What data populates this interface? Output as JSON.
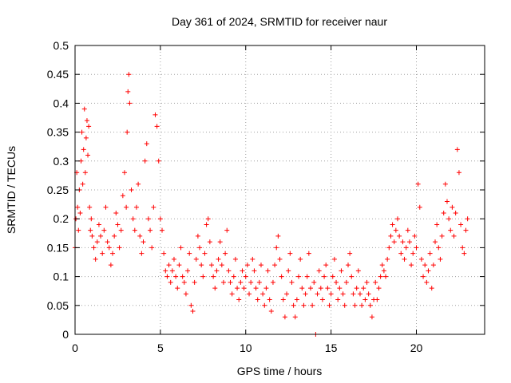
{
  "chart_data": {
    "type": "scatter",
    "title": "Day 361 of 2024, SRMTID for receiver naur",
    "xlabel": "GPS time / hours",
    "ylabel": "SRMTID / TECUs",
    "xlim": [
      0,
      24
    ],
    "ylim": [
      0,
      0.5
    ],
    "xticks": [
      0,
      5,
      10,
      15,
      20
    ],
    "yticks": [
      0,
      0.05,
      0.1,
      0.15,
      0.2,
      0.25,
      0.3,
      0.35,
      0.4,
      0.45,
      0.5
    ],
    "xtick_labels": [
      "0",
      "5",
      "10",
      "15",
      "20"
    ],
    "ytick_labels": [
      "0",
      "0.05",
      "0.1",
      "0.15",
      "0.2",
      "0.25",
      "0.3",
      "0.35",
      "0.4",
      "0.45",
      "0.5"
    ],
    "grid": true,
    "marker": "+",
    "color": "#ff0000",
    "series": [
      {
        "name": "SRMTID",
        "points": [
          [
            0.0,
            0.15
          ],
          [
            0.05,
            0.2
          ],
          [
            0.1,
            0.28
          ],
          [
            0.15,
            0.22
          ],
          [
            0.2,
            0.18
          ],
          [
            0.25,
            0.25
          ],
          [
            0.3,
            0.21
          ],
          [
            0.35,
            0.3
          ],
          [
            0.4,
            0.35
          ],
          [
            0.45,
            0.26
          ],
          [
            0.5,
            0.32
          ],
          [
            0.55,
            0.39
          ],
          [
            0.6,
            0.28
          ],
          [
            0.65,
            0.34
          ],
          [
            0.7,
            0.37
          ],
          [
            0.75,
            0.31
          ],
          [
            0.8,
            0.36
          ],
          [
            0.85,
            0.22
          ],
          [
            0.9,
            0.18
          ],
          [
            0.95,
            0.2
          ],
          [
            1.0,
            0.17
          ],
          [
            1.1,
            0.15
          ],
          [
            1.2,
            0.13
          ],
          [
            1.3,
            0.16
          ],
          [
            1.4,
            0.19
          ],
          [
            1.5,
            0.17
          ],
          [
            1.6,
            0.14
          ],
          [
            1.7,
            0.18
          ],
          [
            1.8,
            0.22
          ],
          [
            1.9,
            0.16
          ],
          [
            2.0,
            0.15
          ],
          [
            2.1,
            0.12
          ],
          [
            2.2,
            0.14
          ],
          [
            2.3,
            0.17
          ],
          [
            2.4,
            0.21
          ],
          [
            2.5,
            0.19
          ],
          [
            2.6,
            0.15
          ],
          [
            2.7,
            0.18
          ],
          [
            2.8,
            0.24
          ],
          [
            2.9,
            0.28
          ],
          [
            3.0,
            0.22
          ],
          [
            3.05,
            0.35
          ],
          [
            3.1,
            0.42
          ],
          [
            3.15,
            0.45
          ],
          [
            3.2,
            0.4
          ],
          [
            3.3,
            0.25
          ],
          [
            3.4,
            0.2
          ],
          [
            3.5,
            0.18
          ],
          [
            3.6,
            0.22
          ],
          [
            3.7,
            0.26
          ],
          [
            3.8,
            0.17
          ],
          [
            3.9,
            0.14
          ],
          [
            4.0,
            0.16
          ],
          [
            4.1,
            0.3
          ],
          [
            4.2,
            0.33
          ],
          [
            4.3,
            0.2
          ],
          [
            4.4,
            0.18
          ],
          [
            4.5,
            0.15
          ],
          [
            4.6,
            0.22
          ],
          [
            4.7,
            0.38
          ],
          [
            4.8,
            0.36
          ],
          [
            4.9,
            0.3
          ],
          [
            5.0,
            0.2
          ],
          [
            5.1,
            0.18
          ],
          [
            5.2,
            0.14
          ],
          [
            5.3,
            0.11
          ],
          [
            5.4,
            0.1
          ],
          [
            5.5,
            0.12
          ],
          [
            5.6,
            0.09
          ],
          [
            5.7,
            0.11
          ],
          [
            5.8,
            0.13
          ],
          [
            5.9,
            0.1
          ],
          [
            6.0,
            0.08
          ],
          [
            6.1,
            0.12
          ],
          [
            6.2,
            0.15
          ],
          [
            6.3,
            0.1
          ],
          [
            6.4,
            0.09
          ],
          [
            6.5,
            0.07
          ],
          [
            6.6,
            0.11
          ],
          [
            6.7,
            0.14
          ],
          [
            6.8,
            0.05
          ],
          [
            6.9,
            0.04
          ],
          [
            7.0,
            0.09
          ],
          [
            7.1,
            0.13
          ],
          [
            7.2,
            0.17
          ],
          [
            7.3,
            0.15
          ],
          [
            7.4,
            0.12
          ],
          [
            7.5,
            0.1
          ],
          [
            7.6,
            0.14
          ],
          [
            7.7,
            0.19
          ],
          [
            7.8,
            0.2
          ],
          [
            7.9,
            0.16
          ],
          [
            8.0,
            0.12
          ],
          [
            8.1,
            0.1
          ],
          [
            8.2,
            0.08
          ],
          [
            8.3,
            0.11
          ],
          [
            8.4,
            0.13
          ],
          [
            8.5,
            0.16
          ],
          [
            8.6,
            0.12
          ],
          [
            8.7,
            0.09
          ],
          [
            8.8,
            0.14
          ],
          [
            8.9,
            0.18
          ],
          [
            9.0,
            0.11
          ],
          [
            9.1,
            0.09
          ],
          [
            9.2,
            0.07
          ],
          [
            9.3,
            0.1
          ],
          [
            9.4,
            0.13
          ],
          [
            9.5,
            0.08
          ],
          [
            9.6,
            0.06
          ],
          [
            9.7,
            0.09
          ],
          [
            9.8,
            0.11
          ],
          [
            9.9,
            0.08
          ],
          [
            10.0,
            0.1
          ],
          [
            10.1,
            0.12
          ],
          [
            10.2,
            0.07
          ],
          [
            10.3,
            0.09
          ],
          [
            10.4,
            0.13
          ],
          [
            10.5,
            0.11
          ],
          [
            10.6,
            0.08
          ],
          [
            10.7,
            0.06
          ],
          [
            10.8,
            0.09
          ],
          [
            10.9,
            0.12
          ],
          [
            11.0,
            0.07
          ],
          [
            11.1,
            0.05
          ],
          [
            11.2,
            0.08
          ],
          [
            11.3,
            0.11
          ],
          [
            11.4,
            0.06
          ],
          [
            11.5,
            0.04
          ],
          [
            11.6,
            0.09
          ],
          [
            11.7,
            0.12
          ],
          [
            11.8,
            0.15
          ],
          [
            11.9,
            0.17
          ],
          [
            12.0,
            0.13
          ],
          [
            12.1,
            0.1
          ],
          [
            12.2,
            0.06
          ],
          [
            12.3,
            0.03
          ],
          [
            12.4,
            0.07
          ],
          [
            12.5,
            0.11
          ],
          [
            12.6,
            0.14
          ],
          [
            12.7,
            0.09
          ],
          [
            12.8,
            0.05
          ],
          [
            12.9,
            0.03
          ],
          [
            13.0,
            0.06
          ],
          [
            13.1,
            0.1
          ],
          [
            13.2,
            0.13
          ],
          [
            13.3,
            0.08
          ],
          [
            13.4,
            0.05
          ],
          [
            13.5,
            0.07
          ],
          [
            13.6,
            0.1
          ],
          [
            13.7,
            0.14
          ],
          [
            13.8,
            0.08
          ],
          [
            13.9,
            0.05
          ],
          [
            14.0,
            0.09
          ],
          [
            14.1,
            0.0
          ],
          [
            14.2,
            0.07
          ],
          [
            14.3,
            0.11
          ],
          [
            14.4,
            0.08
          ],
          [
            14.5,
            0.06
          ],
          [
            14.6,
            0.1
          ],
          [
            14.7,
            0.12
          ],
          [
            14.8,
            0.08
          ],
          [
            14.9,
            0.05
          ],
          [
            15.0,
            0.07
          ],
          [
            15.1,
            0.1
          ],
          [
            15.2,
            0.13
          ],
          [
            15.3,
            0.09
          ],
          [
            15.4,
            0.06
          ],
          [
            15.5,
            0.08
          ],
          [
            15.6,
            0.11
          ],
          [
            15.7,
            0.07
          ],
          [
            15.8,
            0.05
          ],
          [
            15.9,
            0.09
          ],
          [
            16.0,
            0.12
          ],
          [
            16.1,
            0.14
          ],
          [
            16.2,
            0.1
          ],
          [
            16.3,
            0.07
          ],
          [
            16.4,
            0.05
          ],
          [
            16.5,
            0.08
          ],
          [
            16.6,
            0.11
          ],
          [
            16.7,
            0.07
          ],
          [
            16.8,
            0.05
          ],
          [
            16.9,
            0.08
          ],
          [
            17.0,
            0.06
          ],
          [
            17.1,
            0.09
          ],
          [
            17.2,
            0.07
          ],
          [
            17.3,
            0.05
          ],
          [
            17.4,
            0.03
          ],
          [
            17.5,
            0.06
          ],
          [
            17.6,
            0.09
          ],
          [
            17.7,
            0.06
          ],
          [
            17.8,
            0.08
          ],
          [
            17.9,
            0.1
          ],
          [
            18.0,
            0.12
          ],
          [
            18.1,
            0.11
          ],
          [
            18.2,
            0.1
          ],
          [
            18.3,
            0.13
          ],
          [
            18.4,
            0.15
          ],
          [
            18.5,
            0.17
          ],
          [
            18.6,
            0.19
          ],
          [
            18.7,
            0.16
          ],
          [
            18.8,
            0.18
          ],
          [
            18.9,
            0.2
          ],
          [
            19.0,
            0.17
          ],
          [
            19.1,
            0.14
          ],
          [
            19.2,
            0.16
          ],
          [
            19.3,
            0.13
          ],
          [
            19.4,
            0.15
          ],
          [
            19.5,
            0.18
          ],
          [
            19.6,
            0.16
          ],
          [
            19.7,
            0.12
          ],
          [
            19.8,
            0.14
          ],
          [
            19.9,
            0.17
          ],
          [
            20.0,
            0.15
          ],
          [
            20.1,
            0.26
          ],
          [
            20.2,
            0.22
          ],
          [
            20.3,
            0.13
          ],
          [
            20.4,
            0.1
          ],
          [
            20.5,
            0.12
          ],
          [
            20.6,
            0.09
          ],
          [
            20.7,
            0.11
          ],
          [
            20.8,
            0.14
          ],
          [
            20.9,
            0.08
          ],
          [
            21.0,
            0.12
          ],
          [
            21.1,
            0.16
          ],
          [
            21.2,
            0.19
          ],
          [
            21.3,
            0.15
          ],
          [
            21.4,
            0.13
          ],
          [
            21.5,
            0.17
          ],
          [
            21.6,
            0.21
          ],
          [
            21.7,
            0.26
          ],
          [
            21.8,
            0.23
          ],
          [
            21.9,
            0.2
          ],
          [
            22.0,
            0.18
          ],
          [
            22.1,
            0.22
          ],
          [
            22.2,
            0.17
          ],
          [
            22.3,
            0.21
          ],
          [
            22.4,
            0.32
          ],
          [
            22.5,
            0.28
          ],
          [
            22.6,
            0.19
          ],
          [
            22.7,
            0.15
          ],
          [
            22.8,
            0.14
          ],
          [
            22.9,
            0.18
          ],
          [
            23.0,
            0.2
          ]
        ]
      }
    ]
  }
}
